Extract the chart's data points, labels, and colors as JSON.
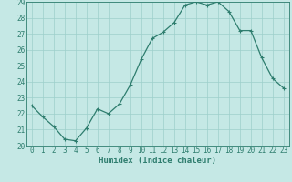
{
  "x": [
    0,
    1,
    2,
    3,
    4,
    5,
    6,
    7,
    8,
    9,
    10,
    11,
    12,
    13,
    14,
    15,
    16,
    17,
    18,
    19,
    20,
    21,
    22,
    23
  ],
  "y": [
    22.5,
    21.8,
    21.2,
    20.4,
    20.3,
    21.1,
    22.3,
    22.0,
    22.6,
    23.8,
    25.4,
    26.7,
    27.1,
    27.7,
    28.8,
    29.0,
    28.8,
    29.0,
    28.4,
    27.2,
    27.2,
    25.5,
    24.2,
    23.6
  ],
  "line_color": "#2e7d6e",
  "marker": "+",
  "marker_size": 3,
  "marker_linewidth": 0.8,
  "background_color": "#c5e8e5",
  "grid_color": "#9dcfcb",
  "xlabel": "Humidex (Indice chaleur)",
  "ylim": [
    20,
    29
  ],
  "xlim_min": -0.5,
  "xlim_max": 23.5,
  "yticks": [
    20,
    21,
    22,
    23,
    24,
    25,
    26,
    27,
    28,
    29
  ],
  "xticks": [
    0,
    1,
    2,
    3,
    4,
    5,
    6,
    7,
    8,
    9,
    10,
    11,
    12,
    13,
    14,
    15,
    16,
    17,
    18,
    19,
    20,
    21,
    22,
    23
  ],
  "tick_color": "#2e7d6e",
  "label_fontsize": 6.5,
  "tick_fontsize": 5.5,
  "linewidth": 0.9
}
